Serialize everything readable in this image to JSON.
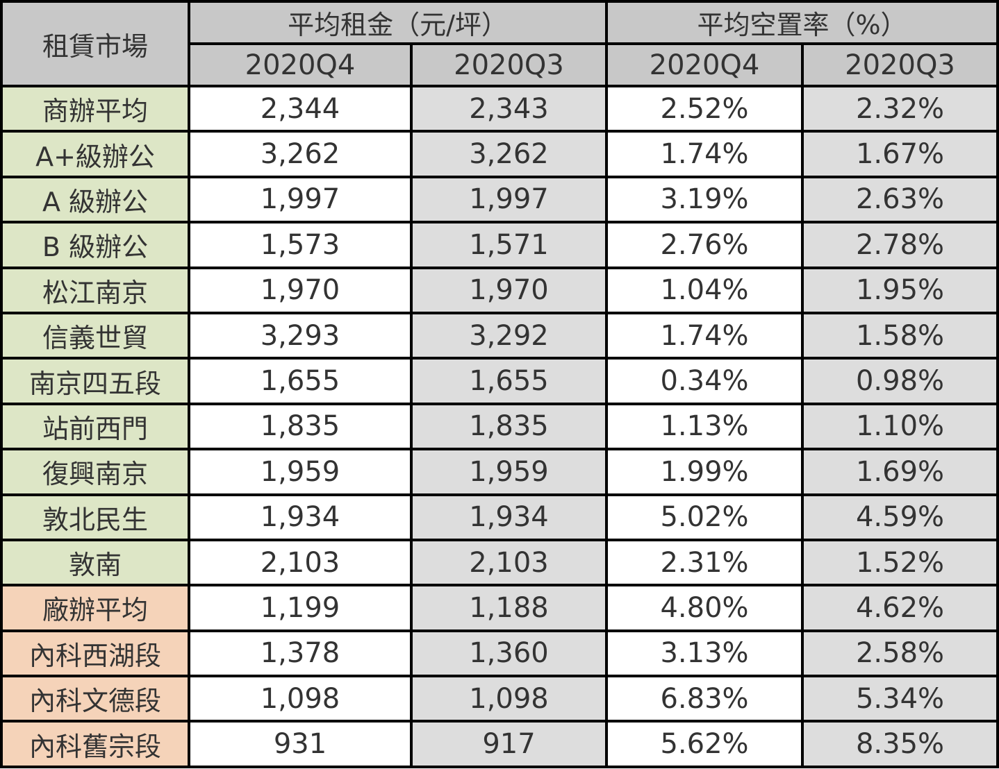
{
  "chart_data": {
    "type": "table",
    "header": {
      "market": "租賃市場",
      "rent_group": "平均租金（元/坪）",
      "vacancy_group": "平均空置率（%）",
      "periods": [
        "2020Q4",
        "2020Q3",
        "2020Q4",
        "2020Q3"
      ]
    },
    "colors": {
      "header_bg": "#c8c8c8",
      "office_label_bg": "#dde6c6",
      "factory_office_label_bg": "#f5d3b9",
      "q4_cell_bg": "#ffffff",
      "q3_cell_bg": "#dddddd",
      "border": "#000000",
      "text": "#333333"
    },
    "rows": [
      {
        "market": "商辦平均",
        "category": "office",
        "rent_q4": "2,344",
        "rent_q3": "2,343",
        "vac_q4": "2.52%",
        "vac_q3": "2.32%"
      },
      {
        "market": "A+級辦公",
        "category": "office",
        "rent_q4": "3,262",
        "rent_q3": "3,262",
        "vac_q4": "1.74%",
        "vac_q3": "1.67%"
      },
      {
        "market": "A 級辦公",
        "category": "office",
        "rent_q4": "1,997",
        "rent_q3": "1,997",
        "vac_q4": "3.19%",
        "vac_q3": "2.63%"
      },
      {
        "market": "B 級辦公",
        "category": "office",
        "rent_q4": "1,573",
        "rent_q3": "1,571",
        "vac_q4": "2.76%",
        "vac_q3": "2.78%"
      },
      {
        "market": "松江南京",
        "category": "office",
        "rent_q4": "1,970",
        "rent_q3": "1,970",
        "vac_q4": "1.04%",
        "vac_q3": "1.95%"
      },
      {
        "market": "信義世貿",
        "category": "office",
        "rent_q4": "3,293",
        "rent_q3": "3,292",
        "vac_q4": "1.74%",
        "vac_q3": "1.58%"
      },
      {
        "market": "南京四五段",
        "category": "office",
        "rent_q4": "1,655",
        "rent_q3": "1,655",
        "vac_q4": "0.34%",
        "vac_q3": "0.98%"
      },
      {
        "market": "站前西門",
        "category": "office",
        "rent_q4": "1,835",
        "rent_q3": "1,835",
        "vac_q4": "1.13%",
        "vac_q3": "1.10%"
      },
      {
        "market": "復興南京",
        "category": "office",
        "rent_q4": "1,959",
        "rent_q3": "1,959",
        "vac_q4": "1.99%",
        "vac_q3": "1.69%"
      },
      {
        "market": "敦北民生",
        "category": "office",
        "rent_q4": "1,934",
        "rent_q3": "1,934",
        "vac_q4": "5.02%",
        "vac_q3": "4.59%"
      },
      {
        "market": "敦南",
        "category": "office",
        "rent_q4": "2,103",
        "rent_q3": "2,103",
        "vac_q4": "2.31%",
        "vac_q3": "1.52%"
      },
      {
        "market": "廠辦平均",
        "category": "factory_office",
        "rent_q4": "1,199",
        "rent_q3": "1,188",
        "vac_q4": "4.80%",
        "vac_q3": "4.62%"
      },
      {
        "market": "內科西湖段",
        "category": "factory_office",
        "rent_q4": "1,378",
        "rent_q3": "1,360",
        "vac_q4": "3.13%",
        "vac_q3": "2.58%"
      },
      {
        "market": "內科文德段",
        "category": "factory_office",
        "rent_q4": "1,098",
        "rent_q3": "1,098",
        "vac_q4": "6.83%",
        "vac_q3": "5.34%"
      },
      {
        "market": "內科舊宗段",
        "category": "factory_office",
        "rent_q4": "931",
        "rent_q3": "917",
        "vac_q4": "5.62%",
        "vac_q3": "8.35%"
      }
    ]
  }
}
